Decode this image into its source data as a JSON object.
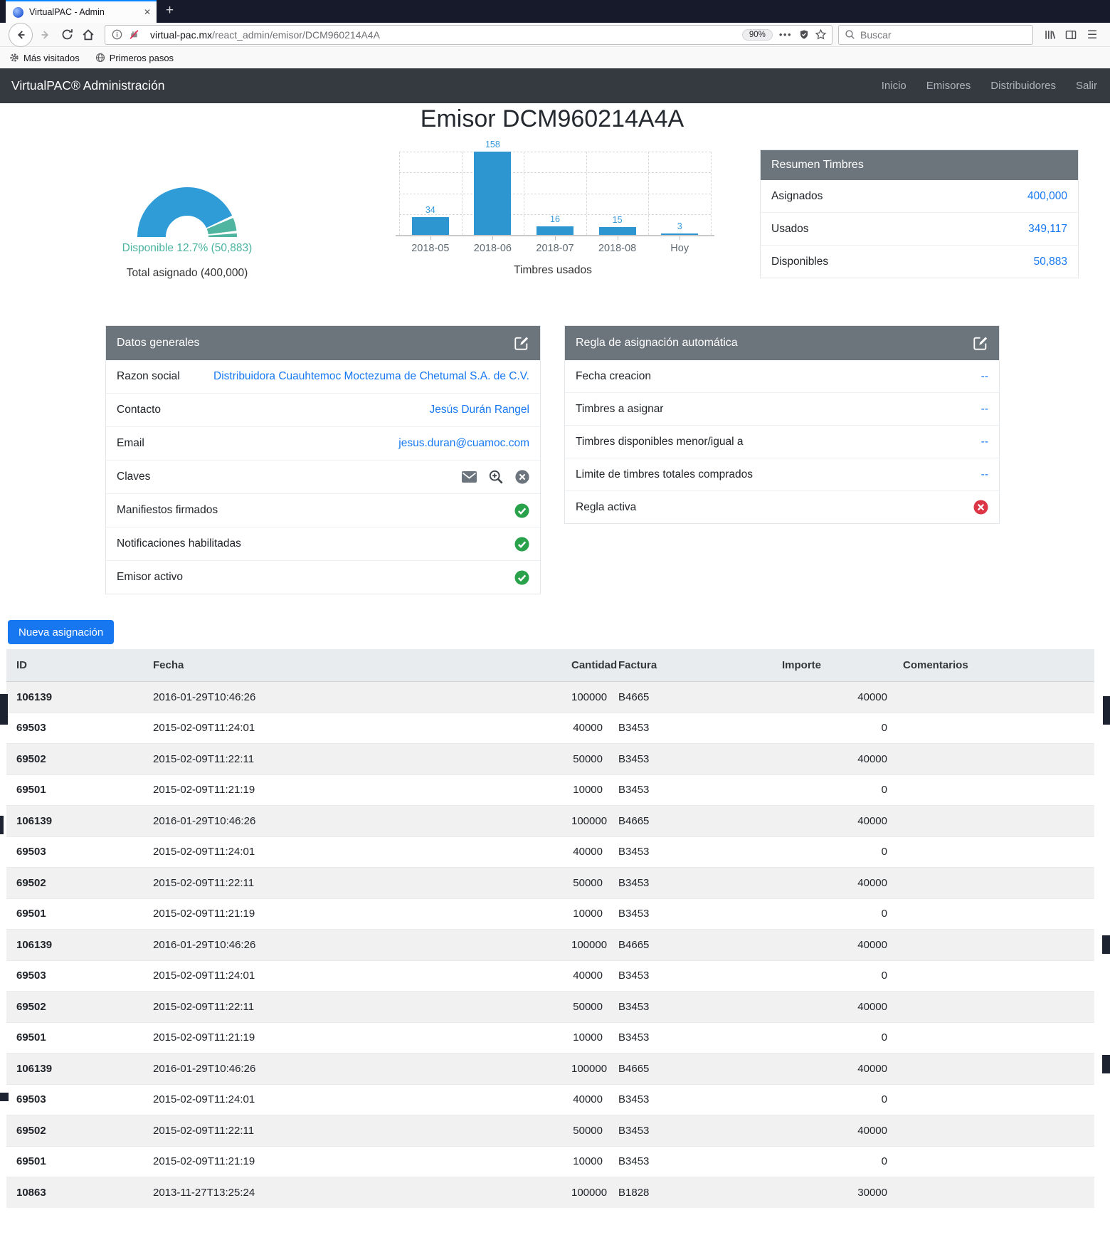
{
  "browser": {
    "tab_title": "VirtualPAC - Admin",
    "icons": {
      "close": "✕",
      "new_tab": "+",
      "menu": "☰",
      "dots": "•••"
    },
    "url_domain": "virtual-pac.mx",
    "url_path": "/react_admin/emisor/DCM960214A4A",
    "zoom_level": "90%",
    "search_placeholder": "Buscar",
    "bookmarks": [
      "Más visitados",
      "Primeros pasos"
    ]
  },
  "navbar": {
    "brand": "VirtualPAC® Administración",
    "links": [
      "Inicio",
      "Emisores",
      "Distribuidores",
      "Salir"
    ]
  },
  "page_title": "Emisor DCM960214A4A",
  "chart_data": [
    {
      "type": "pie",
      "subtype": "half_donut",
      "annotation": "Disponible 12.7% (50,883)",
      "caption": "Total asignado (400,000)",
      "slices": [
        {
          "label": "Usados",
          "value": 349117,
          "pct": 87.3,
          "color": "#2f9cd8"
        },
        {
          "label": "Disponible",
          "value": 50883,
          "pct": 12.7,
          "color": "#4fb5a1"
        }
      ]
    },
    {
      "type": "bar",
      "title": "Timbres usados",
      "categories": [
        "2018-05",
        "2018-06",
        "2018-07",
        "2018-08",
        "Hoy"
      ],
      "values": [
        34,
        158,
        16,
        15,
        3
      ],
      "ylim": [
        0,
        158
      ],
      "grid": "dashed",
      "bar_color": "#2d95cf",
      "label_color": "#3398db"
    }
  ],
  "resumen": {
    "title": "Resumen Timbres",
    "rows": [
      {
        "label": "Asignados",
        "value": "400,000"
      },
      {
        "label": "Usados",
        "value": "349,117"
      },
      {
        "label": "Disponibles",
        "value": "50,883"
      }
    ]
  },
  "datos": {
    "title": "Datos generales",
    "rows": [
      {
        "label": "Razon social",
        "type": "link",
        "value": "Distribuidora Cuauhtemoc Moctezuma de Chetumal S.A. de C.V."
      },
      {
        "label": "Contacto",
        "type": "link",
        "value": "Jesús Durán Rangel"
      },
      {
        "label": "Email",
        "type": "link",
        "value": "jesus.duran@cuamoc.com"
      },
      {
        "label": "Claves",
        "type": "icons"
      },
      {
        "label": "Manifiestos firmados",
        "type": "status",
        "status": "check"
      },
      {
        "label": "Notificaciones habilitadas",
        "type": "status",
        "status": "check"
      },
      {
        "label": "Emisor activo",
        "type": "status",
        "status": "check"
      }
    ]
  },
  "regla": {
    "title": "Regla de asignación automática",
    "rows": [
      {
        "label": "Fecha creacion",
        "value": "--"
      },
      {
        "label": "Timbres a asignar",
        "value": "--"
      },
      {
        "label": "Timbres disponibles menor/igual a",
        "value": "--"
      },
      {
        "label": "Limite de timbres totales comprados",
        "value": "--"
      },
      {
        "label": "Regla activa",
        "type": "status",
        "status": "times"
      }
    ]
  },
  "asignaciones": {
    "new_button": "Nueva asignación",
    "columns": [
      "ID",
      "Fecha",
      "Cantidad",
      "Factura",
      "Importe",
      "Comentarios"
    ],
    "rows": [
      [
        "106139",
        "2016-01-29T10:46:26",
        "100000",
        "B4665",
        "40000",
        ""
      ],
      [
        "69503",
        "2015-02-09T11:24:01",
        "40000",
        "B3453",
        "0",
        ""
      ],
      [
        "69502",
        "2015-02-09T11:22:11",
        "50000",
        "B3453",
        "40000",
        ""
      ],
      [
        "69501",
        "2015-02-09T11:21:19",
        "10000",
        "B3453",
        "0",
        ""
      ],
      [
        "106139",
        "2016-01-29T10:46:26",
        "100000",
        "B4665",
        "40000",
        ""
      ],
      [
        "69503",
        "2015-02-09T11:24:01",
        "40000",
        "B3453",
        "0",
        ""
      ],
      [
        "69502",
        "2015-02-09T11:22:11",
        "50000",
        "B3453",
        "40000",
        ""
      ],
      [
        "69501",
        "2015-02-09T11:21:19",
        "10000",
        "B3453",
        "0",
        ""
      ],
      [
        "106139",
        "2016-01-29T10:46:26",
        "100000",
        "B4665",
        "40000",
        ""
      ],
      [
        "69503",
        "2015-02-09T11:24:01",
        "40000",
        "B3453",
        "0",
        ""
      ],
      [
        "69502",
        "2015-02-09T11:22:11",
        "50000",
        "B3453",
        "40000",
        ""
      ],
      [
        "69501",
        "2015-02-09T11:21:19",
        "10000",
        "B3453",
        "0",
        ""
      ],
      [
        "106139",
        "2016-01-29T10:46:26",
        "100000",
        "B4665",
        "40000",
        ""
      ],
      [
        "69503",
        "2015-02-09T11:24:01",
        "40000",
        "B3453",
        "0",
        ""
      ],
      [
        "69502",
        "2015-02-09T11:22:11",
        "50000",
        "B3453",
        "40000",
        ""
      ],
      [
        "69501",
        "2015-02-09T11:21:19",
        "10000",
        "B3453",
        "0",
        ""
      ],
      [
        "10863",
        "2013-11-27T13:25:24",
        "100000",
        "B1828",
        "30000",
        ""
      ]
    ]
  }
}
